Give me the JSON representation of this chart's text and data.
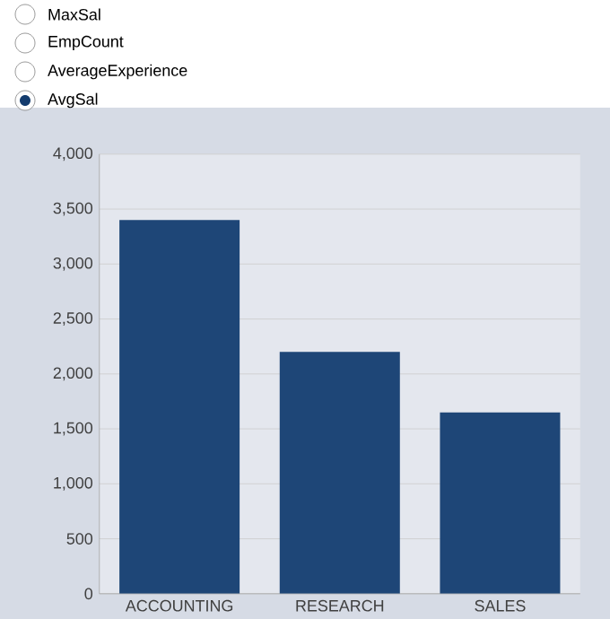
{
  "chart_data": {
    "type": "bar",
    "categories": [
      "ACCOUNTING",
      "RESEARCH",
      "SALES"
    ],
    "values": [
      3400,
      2200,
      1650
    ],
    "color": "#1e4677",
    "ylim": [
      0,
      4000
    ],
    "yticks": [
      {
        "value": 0,
        "label": "0"
      },
      {
        "value": 500,
        "label": "500"
      },
      {
        "value": 1000,
        "label": "1,000"
      },
      {
        "value": 1500,
        "label": "1,500"
      },
      {
        "value": 2000,
        "label": "2,000"
      },
      {
        "value": 2500,
        "label": "2,500"
      },
      {
        "value": 3000,
        "label": "3,000"
      },
      {
        "value": 3500,
        "label": "3,500"
      },
      {
        "value": 4000,
        "label": "4,000"
      }
    ],
    "grid": "y",
    "annotations": [
      "MaxSal",
      "EmpCount",
      "AverageExperience",
      "AvgSal"
    ]
  }
}
